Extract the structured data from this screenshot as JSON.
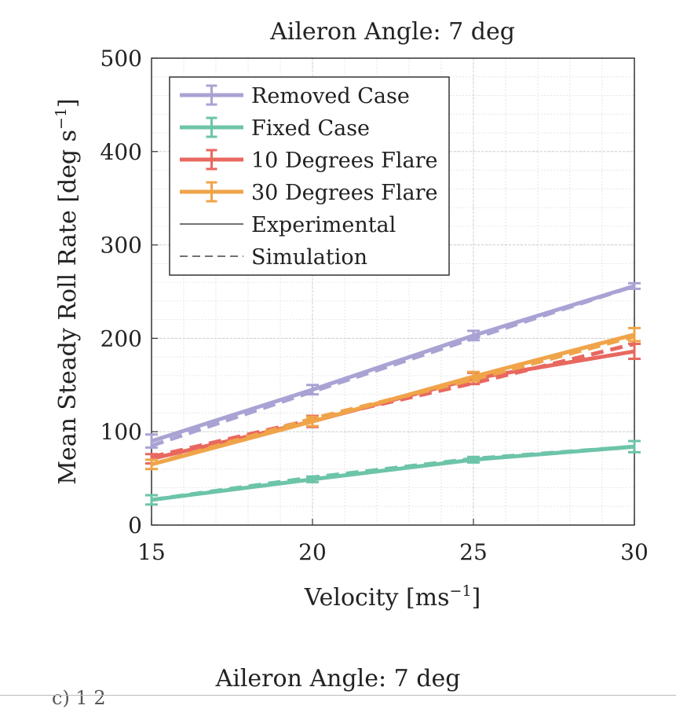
{
  "chart_data": {
    "type": "line",
    "title": "Aileron Angle: 7 deg",
    "xlabel": "Velocity [ms",
    "xlabel_sup": "−1",
    "xlabel_end": "]",
    "ylabel": "Mean Steady Roll Rate [deg s",
    "ylabel_sup": "−1",
    "ylabel_end": "]",
    "xlim": [
      15,
      30
    ],
    "ylim": [
      0,
      500
    ],
    "x_ticks": [
      15,
      20,
      25,
      30
    ],
    "y_ticks": [
      0,
      100,
      200,
      300,
      400,
      500
    ],
    "grid": true,
    "legend_position": "top-left",
    "x": [
      15,
      20,
      25,
      30
    ],
    "series": [
      {
        "name": "Removed Case",
        "color": "#a9a3d4",
        "experimental": [
          90,
          145,
          203,
          256
        ],
        "simulation": [
          85,
          143,
          200,
          256
        ],
        "error": [
          7,
          5,
          5,
          3
        ]
      },
      {
        "name": "Fixed Case",
        "color": "#6cc4a9",
        "experimental": [
          27,
          49,
          70,
          84
        ],
        "simulation": [
          27,
          51,
          71,
          84
        ],
        "error": [
          5,
          3,
          3,
          6
        ]
      },
      {
        "name": "10 Degrees Flare",
        "color": "#e8685f",
        "experimental": [
          71,
          111,
          157,
          186
        ],
        "simulation": [
          73,
          113,
          152,
          194
        ],
        "error": [
          5,
          6,
          6,
          8
        ]
      },
      {
        "name": "30 Degrees Flare",
        "color": "#f0a449",
        "experimental": [
          65,
          111,
          159,
          204
        ],
        "simulation": [
          65,
          114,
          156,
          202
        ],
        "error": [
          5,
          5,
          5,
          7
        ]
      }
    ],
    "legend_line_styles": [
      {
        "label": "Experimental",
        "style": "solid"
      },
      {
        "label": "Simulation",
        "style": "dashed"
      }
    ]
  },
  "below": {
    "next_title": "Aileron Angle: 7 deg",
    "cut_fragment": "c)  1 2"
  }
}
